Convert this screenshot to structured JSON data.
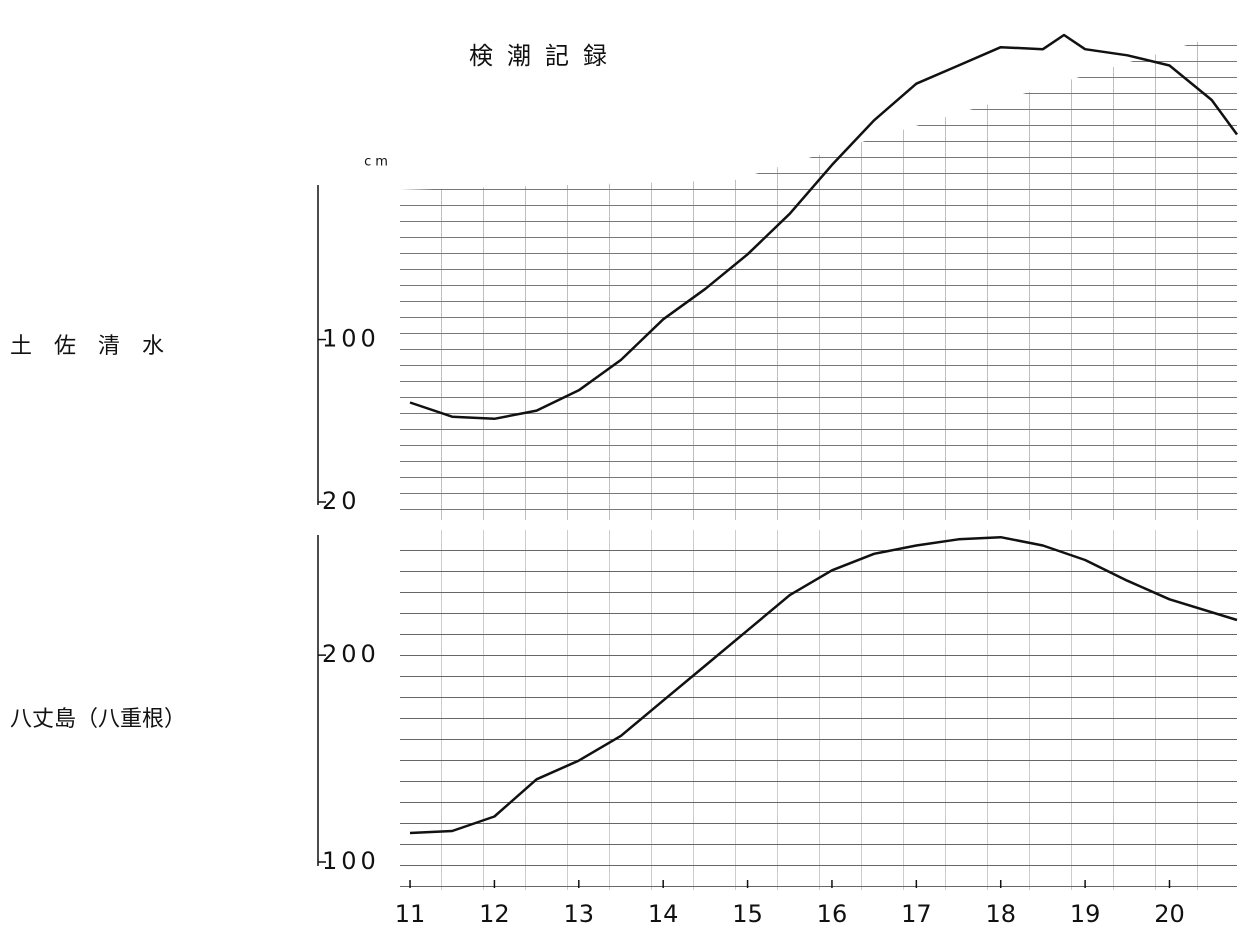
{
  "chart_data": [
    {
      "type": "line",
      "title": "検潮記録",
      "unit": "cm",
      "station": "土　佐　清　水",
      "x": [
        11,
        11.5,
        12,
        12.5,
        13,
        13.5,
        14,
        14.5,
        15,
        15.5,
        16,
        16.5,
        17,
        17.5,
        18,
        18.5,
        18.75,
        19,
        19.5,
        20,
        20.5,
        20.8
      ],
      "series": [
        {
          "color": "#111111",
          "values": [
            69,
            62,
            61,
            65,
            75,
            90,
            110,
            125,
            142,
            162,
            186,
            208,
            226,
            235,
            244,
            243,
            250,
            243,
            240,
            235,
            218,
            201
          ]
        }
      ],
      "xlim": [
        10.9,
        20.8
      ],
      "ylim": [
        20,
        250
      ],
      "yticks": [
        20,
        100
      ]
    },
    {
      "type": "line",
      "station": "八丈島（八重根）",
      "x": [
        11,
        11.5,
        12,
        12.5,
        13,
        13.5,
        14,
        14.5,
        15,
        15.5,
        16,
        16.5,
        17,
        17.5,
        18,
        18.5,
        19,
        19.5,
        20,
        20.8
      ],
      "series": [
        {
          "color": "#111111",
          "values": [
            114,
            115,
            122,
            140,
            149,
            161,
            178,
            195,
            212,
            229,
            241,
            249,
            253,
            256,
            257,
            253,
            246,
            236,
            227,
            217
          ]
        }
      ],
      "xlim": [
        10.9,
        20.8
      ],
      "ylim": [
        100,
        260
      ],
      "yticks": [
        100,
        200
      ],
      "xticks": [
        11,
        12,
        13,
        14,
        15,
        16,
        17,
        18,
        19,
        20
      ]
    }
  ]
}
